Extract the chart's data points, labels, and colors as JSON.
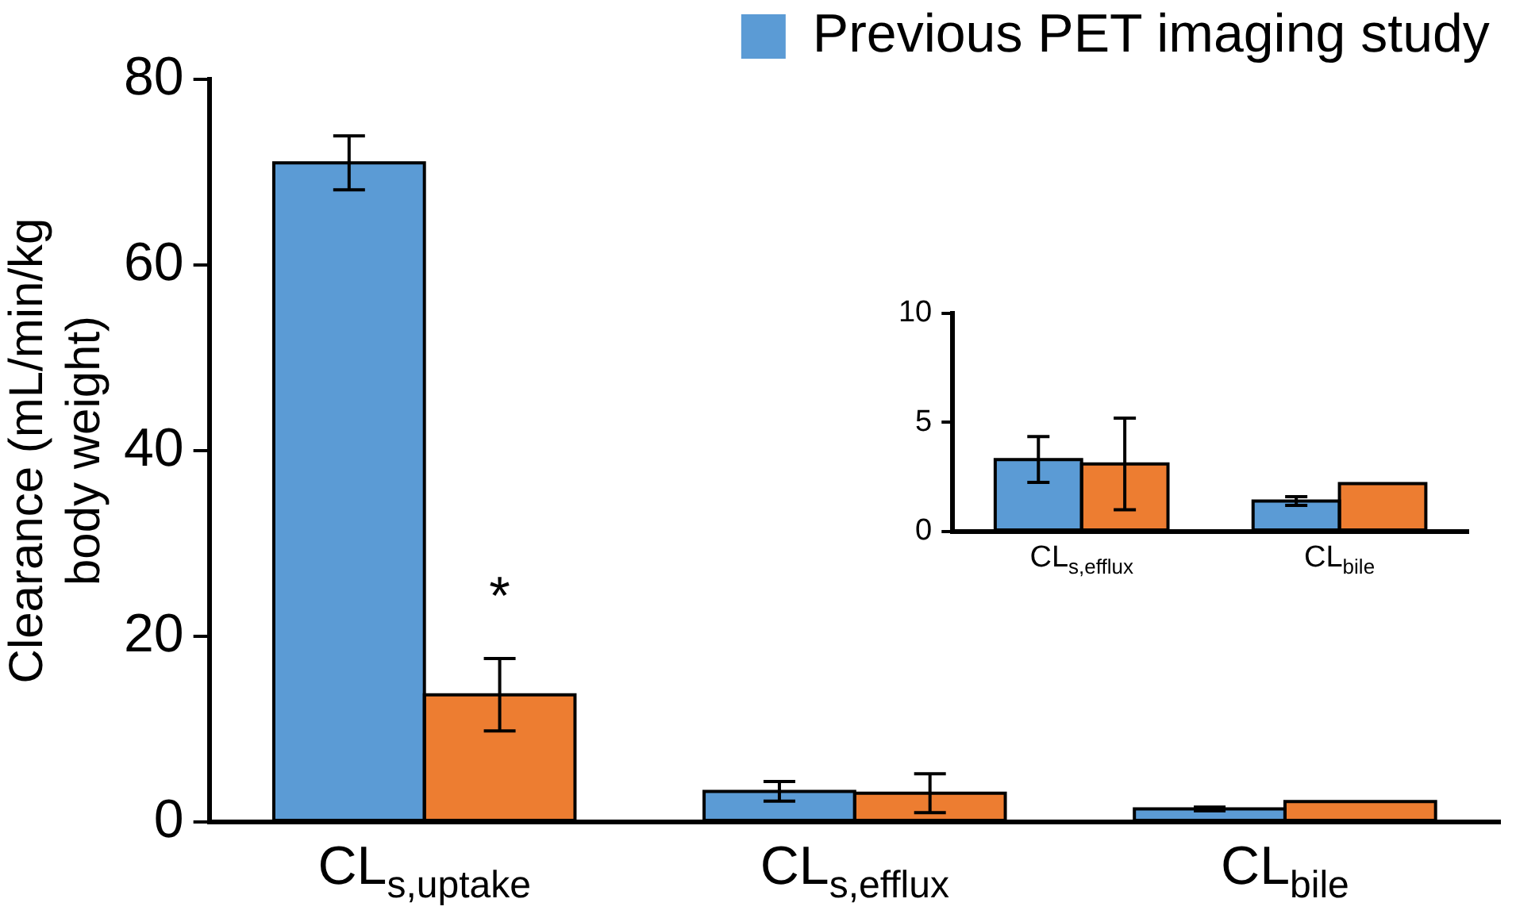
{
  "chart_data": [
    {
      "type": "bar",
      "ylabel": "Clearance (mL/min/kg\nbody weight)",
      "categories": [
        "CL$_{s,uptake}$",
        "CL$_{s,efflux}$",
        "CL$_{bile}$"
      ],
      "series": [
        {
          "name": "Previous PET imaging study",
          "color": "#5b9bd5",
          "values": [
            71,
            3.3,
            1.4
          ],
          "errors": [
            2.9,
            1.05,
            0.2
          ]
        },
        {
          "color": "#ed7d31",
          "values": [
            13.7,
            3.1,
            2.2
          ],
          "errors": [
            3.9,
            2.1,
            null
          ]
        }
      ],
      "ylim": [
        0,
        80
      ],
      "yticks": [
        0,
        20,
        40,
        60,
        80
      ],
      "legend": "top right",
      "annotations": [
        {
          "text": "*",
          "x": "CL$_{s,uptake}$",
          "y": 24
        }
      ]
    },
    {
      "type": "bar",
      "categories": [
        "CL$_{s,efflux}$",
        "CL$_{bile}$"
      ],
      "series": [
        {
          "color": "#5b9bd5",
          "values": [
            3.3,
            1.4
          ],
          "errors": [
            1.05,
            0.2
          ]
        },
        {
          "color": "#ed7d31",
          "values": [
            3.1,
            2.2
          ],
          "errors": [
            2.1,
            null
          ]
        }
      ],
      "ylim": [
        0,
        10
      ],
      "yticks": [
        0,
        5,
        10
      ]
    }
  ]
}
